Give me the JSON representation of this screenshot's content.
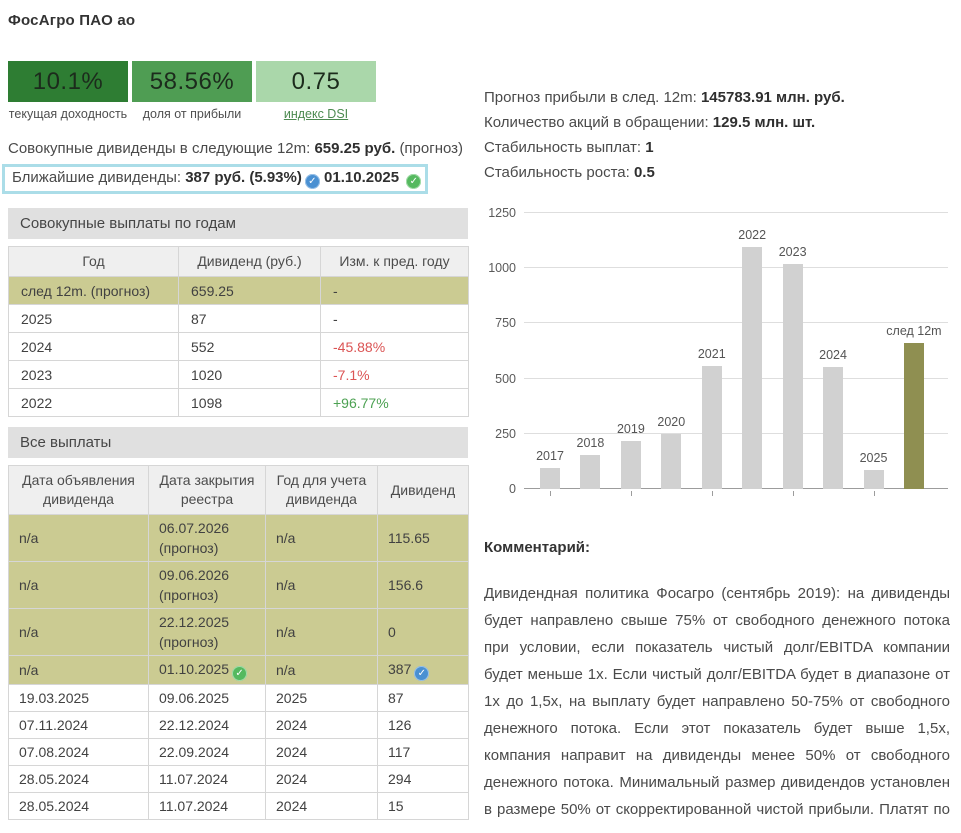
{
  "page": {
    "title": "ФосАгро ПАО ао"
  },
  "stats": [
    {
      "value": "10.1%",
      "label": "текущая доходность",
      "color": "#2e7d33"
    },
    {
      "value": "58.56%",
      "label": "доля от прибыли",
      "color": "#4f9d53"
    },
    {
      "value": "0.75",
      "label": "индекс DSI",
      "color": "#aad7aa",
      "is_link": true
    }
  ],
  "summary": {
    "prefix": "Совокупные дивиденды в следующие 12m:",
    "value": "659.25 руб.",
    "suffix": "(прогноз)"
  },
  "nearest": {
    "label": "Ближайшие дивиденды:",
    "amount": "387 руб.",
    "percent": "(5.93%)",
    "percent_icon": "blue-check",
    "date": "01.10.2025",
    "date_icon": "green-check",
    "highlight_border_color": "#abdde8"
  },
  "right_info": [
    {
      "label": "Прогноз прибыли в след. 12m:",
      "value": "145783.91 млн. руб."
    },
    {
      "label": "Количество акций в обращении:",
      "value": "129.5 млн. шт."
    },
    {
      "label": "Стабильность выплат:",
      "value": "1"
    },
    {
      "label": "Стабильность роста:",
      "value": "0.5"
    }
  ],
  "yearly_table": {
    "section_title": "Совокупные выплаты по годам",
    "headers": [
      "Год",
      "Дивиденд (руб.)",
      "Изм. к пред. году"
    ],
    "rows": [
      {
        "year": "след 12m. (прогноз)",
        "dividend": "659.25",
        "change": "-",
        "forecast": true,
        "change_color": ""
      },
      {
        "year": "2025",
        "dividend": "87",
        "change": "-",
        "forecast": false,
        "change_color": ""
      },
      {
        "year": "2024",
        "dividend": "552",
        "change": "-45.88%",
        "forecast": false,
        "change_color": "red"
      },
      {
        "year": "2023",
        "dividend": "1020",
        "change": "-7.1%",
        "forecast": false,
        "change_color": "red"
      },
      {
        "year": "2022",
        "dividend": "1098",
        "change": "+96.77%",
        "forecast": false,
        "change_color": "green"
      }
    ]
  },
  "payments_table": {
    "section_title": "Все выплаты",
    "headers": [
      "Дата объявления дивиденда",
      "Дата закрытия реестра",
      "Год для учета дивиденда",
      "Дивиденд"
    ],
    "rows": [
      {
        "announce": "n/a",
        "record": "06.07.2026 (прогноз)",
        "year": "n/a",
        "dividend": "115.65",
        "forecast": true
      },
      {
        "announce": "n/a",
        "record": "09.06.2026 (прогноз)",
        "year": "n/a",
        "dividend": "156.6",
        "forecast": true
      },
      {
        "announce": "n/a",
        "record": "22.12.2025 (прогноз)",
        "year": "n/a",
        "dividend": "0",
        "forecast": true
      },
      {
        "announce": "n/a",
        "record": "01.10.2025",
        "record_icon": "green-check",
        "year": "n/a",
        "dividend": "387",
        "dividend_icon": "blue-check",
        "forecast": true
      },
      {
        "announce": "19.03.2025",
        "record": "09.06.2025",
        "year": "2025",
        "dividend": "87",
        "forecast": false
      },
      {
        "announce": "07.11.2024",
        "record": "22.12.2024",
        "year": "2024",
        "dividend": "126",
        "forecast": false
      },
      {
        "announce": "07.08.2024",
        "record": "22.09.2024",
        "year": "2024",
        "dividend": "117",
        "forecast": false
      },
      {
        "announce": "28.05.2024",
        "record": "11.07.2024",
        "year": "2024",
        "dividend": "294",
        "forecast": false
      },
      {
        "announce": "28.05.2024",
        "record": "11.07.2024",
        "year": "2024",
        "dividend": "15",
        "forecast": false
      }
    ]
  },
  "chart_data": {
    "type": "bar",
    "categories": [
      "2017",
      "2018",
      "2019",
      "2020",
      "2021",
      "2022",
      "2023",
      "2024",
      "2025",
      "след 12m"
    ],
    "values": [
      93,
      153,
      219,
      249,
      558,
      1098,
      1020,
      552,
      87,
      659.25
    ],
    "highlight_index": 9,
    "title": "",
    "xlabel": "",
    "ylabel": "",
    "ylim": [
      0,
      1250
    ],
    "yticks": [
      0,
      250,
      500,
      750,
      1000,
      1250
    ],
    "grid": true,
    "legend": false,
    "bar_color": "#d1d1d1",
    "highlight_color": "#8f8f51"
  },
  "comment": {
    "title": "Комментарий:",
    "text": "Дивидендная политика Фосагро (сентябрь 2019): на дивиденды будет направлено свыше 75% от свободного денежного потока при условии, если показатель чистый долг/EBITDA компании будет меньше 1х. Если чистый долг/EBITDA будет в диапазоне от 1х до 1,5х, на выплату будет направлено 50-75% от свободного денежного потока. Если этот показатель будет выше 1,5х, компания направит на дивиденды менее 50% от свободного денежного потока. Минимальный размер дивидендов установлен в размере 50% от скорректированной чистой прибыли. Платят по кварталам."
  }
}
